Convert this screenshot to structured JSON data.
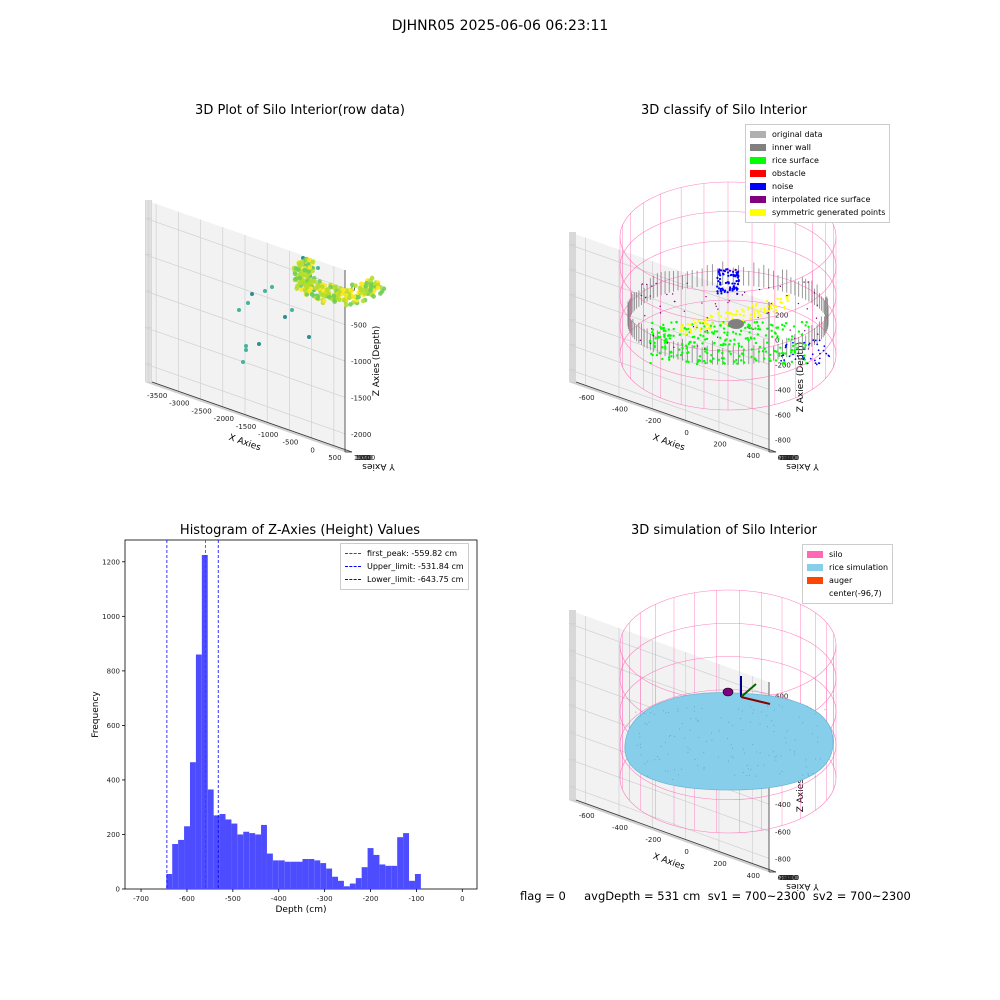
{
  "suptitle": "DJHNR05 2025-06-06 06:23:11",
  "footer": "flag = 0     avgDepth = 531 cm  sv1 = 700~2300  sv2 = 700~2300",
  "chart_data": [
    {
      "type": "scatter3d",
      "title": "3D Plot of Silo Interior(row data)",
      "xlabel": "X Axies",
      "ylabel": "Y Axies",
      "zlabel": "Z Axies (Depth)",
      "xticks": [
        "-3500",
        "-3000",
        "-2500",
        "-2000",
        "-1500",
        "-1000",
        "-500",
        "0",
        "500"
      ],
      "yticks": [
        "-500",
        "0",
        "500",
        "1000",
        "1500"
      ],
      "zticks": [
        "0",
        "-500",
        "-1000",
        "-1500",
        "-2000"
      ]
    },
    {
      "type": "scatter3d",
      "title": "3D classify of Silo Interior",
      "xlabel": "X Axies",
      "ylabel": "Y Axies",
      "zlabel": "Z Axies (Depth)",
      "xticks": [
        "-600",
        "-400",
        "-200",
        "0",
        "200",
        "400"
      ],
      "yticks": [
        "-600",
        "-400",
        "-200",
        "0",
        "200",
        "400",
        "600"
      ],
      "zticks": [
        "200",
        "0",
        "-200",
        "-400",
        "-600",
        "-800"
      ],
      "legend": [
        {
          "label": "original data",
          "color": "#b0b0b0"
        },
        {
          "label": "inner wall",
          "color": "#808080"
        },
        {
          "label": "rice surface",
          "color": "#00ff00"
        },
        {
          "label": "obstacle",
          "color": "#ff0000"
        },
        {
          "label": "noise",
          "color": "#0000ff"
        },
        {
          "label": "interpolated rice surface",
          "color": "#800080"
        },
        {
          "label": "symmetric generated points",
          "color": "#ffff00"
        }
      ]
    },
    {
      "type": "histogram",
      "title": "Histogram of Z-Axies (Height) Values",
      "xlabel": "Depth (cm)",
      "ylabel": "Frequency",
      "xlim": [
        -735,
        32
      ],
      "ylim": [
        0,
        1280
      ],
      "xticks": [
        -700,
        -600,
        -500,
        -400,
        -300,
        -200,
        -100,
        0
      ],
      "yticks": [
        0,
        200,
        400,
        600,
        800,
        1000,
        1200
      ],
      "bin_start": -645,
      "bin_width": 12.9,
      "counts": [
        55,
        165,
        180,
        230,
        465,
        860,
        1225,
        365,
        270,
        275,
        255,
        240,
        200,
        210,
        205,
        200,
        235,
        130,
        105,
        105,
        100,
        100,
        100,
        110,
        110,
        105,
        95,
        75,
        45,
        30,
        10,
        20,
        40,
        80,
        150,
        125,
        90,
        85,
        85,
        190,
        205,
        30,
        55
      ],
      "bar_color": "#4d4dff",
      "lines": [
        {
          "label": "first_peak: -559.82 cm",
          "x": -559.82,
          "color": "#ff0000"
        },
        {
          "label": "Upper_limit: -531.84 cm",
          "x": -531.84,
          "color": "#0000ff"
        },
        {
          "label": "Lower_limit: -643.75 cm",
          "x": -643.75,
          "color": "#0000ff"
        }
      ]
    },
    {
      "type": "surface3d",
      "title": "3D simulation of Silo Interior",
      "xlabel": "X Axies",
      "ylabel": "Y Axies",
      "zlabel": "Z Axies (Depth)",
      "xticks": [
        "-600",
        "-400",
        "-200",
        "0",
        "200",
        "400"
      ],
      "yticks": [
        "-600",
        "-400",
        "-200",
        "0",
        "200",
        "400",
        "600"
      ],
      "zticks": [
        "400",
        "200",
        "0",
        "-200",
        "-400",
        "-600",
        "-800"
      ],
      "legend": [
        {
          "label": "silo",
          "color": "#ff69b4"
        },
        {
          "label": "rice simulation",
          "color": "#87ceeb"
        },
        {
          "label": "auger",
          "color": "#ff4500"
        },
        {
          "label": "center(-96,7)",
          "color": "#ffffff"
        }
      ]
    }
  ]
}
